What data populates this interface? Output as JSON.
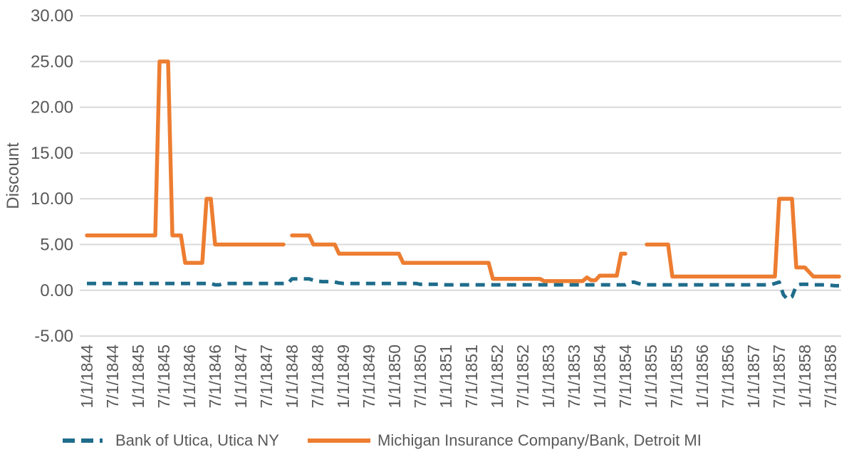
{
  "chart": {
    "y_axis_title": "Discount",
    "colors": {
      "utica_line": "#1F6C8B",
      "michigan_line": "#ED7D31",
      "gridline": "#D9D9D9",
      "axis_text": "#595959"
    },
    "legend": {
      "utica_label": "Bank of Utica, Utica NY",
      "michigan_label": "Michigan Insurance Company/Bank, Detroit MI"
    }
  },
  "chart_data": {
    "type": "line",
    "title": "",
    "xlabel": "",
    "ylabel": "Discount",
    "ylim": [
      -5,
      30
    ],
    "grid": "horizontal",
    "legend_position": "bottom",
    "y_ticks": [
      {
        "label": "30.00",
        "value": 30
      },
      {
        "label": "25.00",
        "value": 25
      },
      {
        "label": "20.00",
        "value": 20
      },
      {
        "label": "15.00",
        "value": 15
      },
      {
        "label": "10.00",
        "value": 10
      },
      {
        "label": "5.00",
        "value": 5
      },
      {
        "label": "0.00",
        "value": 0
      },
      {
        "label": "-5.00",
        "value": -5
      }
    ],
    "x_tick_labels": [
      "1/1/1844",
      "7/1/1844",
      "1/1/1845",
      "7/1/1845",
      "1/1/1846",
      "7/1/1846",
      "1/1/1847",
      "7/1/1847",
      "1/1/1848",
      "7/1/1848",
      "1/1/1849",
      "7/1/1849",
      "1/1/1850",
      "7/1/1850",
      "1/1/1851",
      "7/1/1851",
      "1/1/1852",
      "7/1/1852",
      "1/1/1853",
      "7/1/1853",
      "1/1/1854",
      "7/1/1854",
      "1/1/1855",
      "7/1/1855",
      "1/1/1856",
      "7/1/1856",
      "1/1/1857",
      "7/1/1857",
      "1/1/1858",
      "7/1/1858"
    ],
    "x_monthly": {
      "start": "1844-01",
      "end": "1858-09",
      "points_per_tick": 6
    },
    "series": [
      {
        "name": "Bank of Utica, Utica NY",
        "color": "#1F6C8B",
        "dashed": true,
        "values": [
          0.75,
          0.75,
          0.75,
          0.75,
          0.75,
          0.75,
          0.75,
          0.75,
          0.75,
          0.75,
          0.75,
          0.75,
          0.75,
          0.75,
          0.75,
          0.75,
          0.75,
          0.75,
          0.75,
          0.75,
          0.75,
          0.75,
          0.75,
          0.75,
          0.75,
          0.75,
          0.75,
          0.75,
          0.75,
          0.75,
          0.6,
          0.6,
          0.75,
          0.75,
          0.75,
          0.75,
          0.75,
          0.75,
          0.75,
          0.75,
          0.75,
          0.75,
          0.75,
          0.75,
          0.75,
          0.75,
          0.75,
          0.75,
          1.25,
          1.25,
          1.25,
          1.25,
          1.25,
          1.1,
          1.0,
          0.95,
          0.95,
          0.95,
          0.9,
          0.8,
          0.75,
          0.75,
          0.75,
          0.75,
          0.75,
          0.75,
          0.75,
          0.75,
          0.75,
          0.75,
          0.75,
          0.75,
          0.75,
          0.75,
          0.75,
          0.75,
          0.75,
          0.75,
          0.65,
          0.65,
          0.65,
          0.65,
          0.65,
          0.65,
          0.6,
          0.6,
          0.6,
          0.6,
          0.6,
          0.6,
          0.6,
          0.6,
          0.6,
          0.6,
          0.6,
          0.6,
          0.6,
          0.6,
          0.6,
          0.6,
          0.6,
          0.6,
          0.6,
          0.6,
          0.6,
          0.6,
          0.6,
          0.6,
          0.6,
          0.6,
          0.6,
          0.6,
          0.6,
          0.6,
          0.6,
          0.6,
          0.6,
          0.6,
          0.6,
          0.6,
          0.6,
          0.6,
          0.6,
          0.6,
          0.6,
          0.6,
          0.6,
          0.85,
          0.9,
          0.75,
          0.65,
          0.6,
          0.6,
          0.6,
          0.6,
          0.6,
          0.6,
          0.6,
          0.6,
          0.6,
          0.6,
          0.6,
          0.6,
          0.6,
          0.6,
          0.6,
          0.6,
          0.6,
          0.6,
          0.6,
          0.6,
          0.6,
          0.6,
          0.6,
          0.6,
          0.6,
          0.6,
          0.6,
          0.6,
          0.6,
          0.6,
          0.75,
          0.9,
          -0.5,
          -1.0,
          -0.7,
          0.5,
          0.65,
          0.65,
          0.65,
          0.6,
          0.6,
          0.6,
          0.6,
          0.55,
          0.5,
          0.5
        ]
      },
      {
        "name": "Michigan Insurance Company/Bank, Detroit MI",
        "color": "#ED7D31",
        "dashed": false,
        "values": [
          6,
          6,
          6,
          6,
          6,
          6,
          6,
          6,
          6,
          6,
          6,
          6,
          6,
          6,
          6,
          6,
          6,
          25,
          25,
          25,
          6,
          6,
          6,
          3,
          3,
          3,
          3,
          3,
          10,
          10,
          5,
          5,
          5,
          5,
          5,
          5,
          5,
          5,
          5,
          5,
          5,
          5,
          5,
          5,
          5,
          5,
          5,
          null,
          6,
          6,
          6,
          6,
          6,
          5,
          5,
          5,
          5,
          5,
          5,
          4,
          4,
          4,
          4,
          4,
          4,
          4,
          4,
          4,
          4,
          4,
          4,
          4,
          4,
          4,
          3,
          3,
          3,
          3,
          3,
          3,
          3,
          3,
          3,
          3,
          3,
          3,
          3,
          3,
          3,
          3,
          3,
          3,
          3,
          3,
          3,
          1.25,
          1.25,
          1.25,
          1.25,
          1.25,
          1.25,
          1.25,
          1.25,
          1.25,
          1.25,
          1.25,
          1.25,
          1.0,
          1.0,
          1.0,
          1.0,
          1.0,
          1.0,
          1.0,
          1.0,
          1.0,
          1.0,
          1.4,
          1.1,
          1.1,
          1.6,
          1.6,
          1.6,
          1.6,
          1.6,
          4,
          4,
          null,
          null,
          null,
          null,
          5,
          5,
          5,
          5,
          5,
          5,
          1.5,
          1.5,
          1.5,
          1.5,
          1.5,
          1.5,
          1.5,
          1.5,
          1.5,
          1.5,
          1.5,
          1.5,
          1.5,
          1.5,
          1.5,
          1.5,
          1.5,
          1.5,
          1.5,
          1.5,
          1.5,
          1.5,
          1.5,
          1.5,
          1.5,
          10,
          10,
          10,
          10,
          2.5,
          2.5,
          2.5,
          2.0,
          1.5,
          1.5,
          1.5,
          1.5,
          1.5,
          1.5,
          1.5
        ]
      }
    ]
  }
}
